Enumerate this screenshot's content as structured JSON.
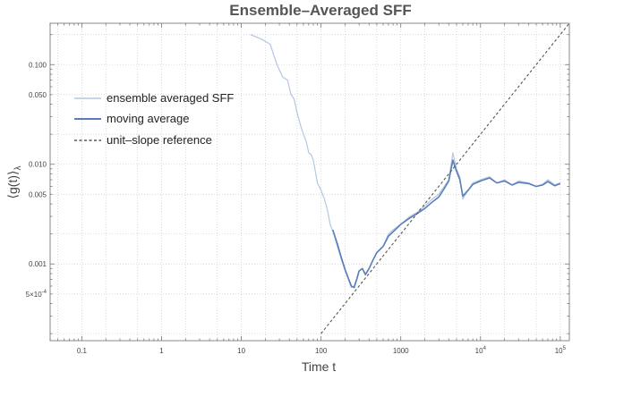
{
  "chart_data": {
    "type": "line",
    "title": "Ensemble–Averaged SFF",
    "xlabel": "Time t",
    "ylabel": "⟨g(t)⟩",
    "ylabel_subscript": "λ",
    "x_scale": "log",
    "y_scale": "log",
    "xlim": [
      0.04,
      130000
    ],
    "ylim": [
      0.00017,
      0.26
    ],
    "x_ticks": [
      {
        "value": 0.1,
        "label": "0.1"
      },
      {
        "value": 1,
        "label": "1"
      },
      {
        "value": 10,
        "label": "10"
      },
      {
        "value": 100,
        "label": "100"
      },
      {
        "value": 1000,
        "label": "1000"
      },
      {
        "value": 10000,
        "label": "10",
        "exp": "4"
      },
      {
        "value": 100000,
        "label": "10",
        "exp": "5"
      }
    ],
    "y_ticks": [
      {
        "value": 0.1,
        "label": "0.100"
      },
      {
        "value": 0.05,
        "label": "0.050"
      },
      {
        "value": 0.01,
        "label": "0.010"
      },
      {
        "value": 0.005,
        "label": "0.005"
      },
      {
        "value": 0.001,
        "label": "0.001"
      },
      {
        "value": 0.0005,
        "label": "5×10",
        "exp": "-4"
      }
    ],
    "grid": true,
    "legend_position": "upper-left",
    "series": [
      {
        "name": "ensemble averaged SFF",
        "color": "#b3c7e3",
        "style": "solid",
        "x": [
          13,
          18,
          23,
          28,
          33,
          38,
          42,
          46,
          50,
          55,
          60,
          65,
          70,
          75,
          80,
          90,
          100,
          110,
          120,
          130,
          145,
          160,
          180,
          200,
          220,
          240,
          260,
          280,
          300,
          330,
          360,
          400,
          450,
          500,
          600,
          700,
          800,
          1000,
          1300,
          1600,
          2000,
          2500,
          3000,
          3500,
          4000,
          4500,
          5000,
          5500,
          6000,
          7000,
          8000,
          10000,
          13000,
          16000,
          20000,
          25000,
          30000,
          40000,
          50000,
          60000,
          70000,
          85000,
          100000
        ],
        "y": [
          0.2,
          0.18,
          0.16,
          0.1,
          0.075,
          0.07,
          0.05,
          0.045,
          0.033,
          0.025,
          0.02,
          0.017,
          0.013,
          0.0125,
          0.011,
          0.0065,
          0.0055,
          0.0045,
          0.0035,
          0.0025,
          0.002,
          0.0015,
          0.0011,
          0.00085,
          0.0007,
          0.00058,
          0.0006,
          0.00072,
          0.00085,
          0.0009,
          0.0008,
          0.0009,
          0.0011,
          0.0013,
          0.0015,
          0.002,
          0.0022,
          0.0025,
          0.003,
          0.0033,
          0.0038,
          0.0045,
          0.005,
          0.006,
          0.007,
          0.013,
          0.009,
          0.0075,
          0.0045,
          0.0055,
          0.0065,
          0.007,
          0.0075,
          0.0065,
          0.007,
          0.0062,
          0.0068,
          0.0065,
          0.006,
          0.0063,
          0.007,
          0.0062,
          0.0065
        ]
      },
      {
        "name": "moving average",
        "color": "#5b7db8",
        "style": "solid",
        "x": [
          140,
          160,
          180,
          200,
          220,
          240,
          260,
          280,
          300,
          330,
          360,
          400,
          450,
          500,
          600,
          700,
          800,
          1000,
          1300,
          1600,
          2000,
          2500,
          3000,
          3500,
          4000,
          4500,
          5000,
          5500,
          6000,
          7000,
          8000,
          10000,
          13000,
          16000,
          20000,
          25000,
          30000,
          40000,
          50000,
          60000,
          70000,
          85000,
          100000
        ],
        "y": [
          0.0022,
          0.0016,
          0.00115,
          0.00088,
          0.00072,
          0.0006,
          0.00058,
          0.0007,
          0.00085,
          0.0009,
          0.00078,
          0.0009,
          0.0011,
          0.0013,
          0.0015,
          0.0019,
          0.0021,
          0.0025,
          0.0029,
          0.0032,
          0.0036,
          0.0042,
          0.0047,
          0.0057,
          0.0068,
          0.011,
          0.0085,
          0.007,
          0.0048,
          0.0055,
          0.0063,
          0.0068,
          0.0073,
          0.0065,
          0.0068,
          0.0062,
          0.0066,
          0.0064,
          0.006,
          0.0062,
          0.0067,
          0.0061,
          0.0064
        ]
      },
      {
        "name": "unit–slope reference",
        "color": "#555555",
        "style": "dashed",
        "x": [
          100,
          130000
        ],
        "y": [
          0.0002,
          0.26
        ]
      }
    ]
  }
}
